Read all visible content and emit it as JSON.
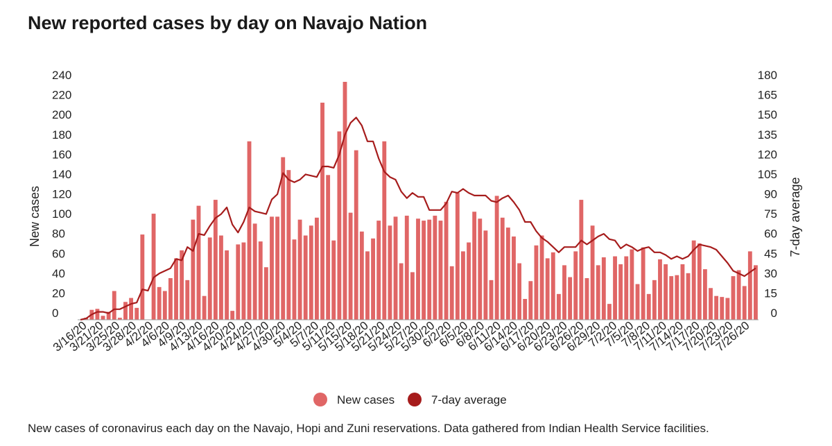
{
  "title": "New reported cases by day on Navajo Nation",
  "caption": "New cases of coronavirus each day on the Navajo, Hopi and Zuni reservations. Data gathered from Indian Health Service facilities.",
  "colors": {
    "bars": "#e06666",
    "line": "#a61c1c",
    "text": "#222222"
  },
  "chart_data": {
    "type": "bar",
    "title": "New reported cases by day on Navajo Nation",
    "ylabel": "New cases",
    "y2label": "7-day average",
    "ylim": [
      0,
      240
    ],
    "y2lim": [
      0,
      180
    ],
    "yticks": [
      0,
      20,
      40,
      60,
      80,
      100,
      120,
      140,
      160,
      180,
      200,
      220,
      240
    ],
    "y2ticks": [
      0,
      15,
      30,
      45,
      60,
      75,
      90,
      105,
      120,
      135,
      150,
      165,
      180
    ],
    "x_tick_labels": [
      "3/16/20",
      "3/21/20",
      "3/25/20",
      "3/28/20",
      "4/2/20",
      "4/6/20",
      "4/9/20",
      "4/13/20",
      "4/16/20",
      "4/20/20",
      "4/24/20",
      "4/27/20",
      "4/30/20",
      "5/4/20",
      "5/7/20",
      "5/11/20",
      "5/15/20",
      "5/18/20",
      "5/21/20",
      "5/24/20",
      "5/27/20",
      "5/30/20",
      "6/2/20",
      "6/5/20",
      "6/8/20",
      "6/11/20",
      "6/14/20",
      "6/17/20",
      "6/20/20",
      "6/23/20",
      "6/26/20",
      "6/29/20",
      "7/2/20",
      "7/5/20",
      "7/8/20",
      "7/11/20",
      "7/14/20",
      "7/17/20",
      "7/20/20",
      "7/23/20",
      "7/26/20"
    ],
    "legend": {
      "placement": "bottom-center",
      "entries": [
        "New cases",
        "7-day average"
      ]
    },
    "grid": false,
    "series": [
      {
        "name": "New cases",
        "type": "bar",
        "axis": "left",
        "values": [
          0,
          2,
          10,
          11,
          4,
          8,
          29,
          2,
          18,
          22,
          12,
          86,
          0,
          107,
          33,
          29,
          42,
          62,
          70,
          40,
          101,
          115,
          24,
          83,
          121,
          85,
          70,
          9,
          76,
          78,
          180,
          97,
          79,
          53,
          104,
          104,
          164,
          151,
          81,
          101,
          85,
          95,
          103,
          219,
          146,
          80,
          190,
          240,
          108,
          171,
          89,
          69,
          82,
          100,
          180,
          95,
          104,
          57,
          105,
          48,
          102,
          100,
          101,
          105,
          100,
          119,
          54,
          128,
          69,
          78,
          109,
          102,
          90,
          40,
          125,
          103,
          93,
          84,
          57,
          21,
          39,
          75,
          85,
          62,
          68,
          26,
          55,
          43,
          69,
          121,
          42,
          95,
          55,
          63,
          16,
          64,
          56,
          64,
          71,
          36,
          73,
          26,
          40,
          61,
          56,
          44,
          45,
          56,
          47,
          80,
          77,
          51,
          32,
          24,
          23,
          22,
          44,
          50,
          34,
          69,
          55
        ]
      },
      {
        "name": "7-day average",
        "type": "line",
        "axis": "right",
        "values": [
          0,
          1,
          4,
          6,
          6,
          5,
          8,
          8,
          10,
          12,
          13,
          23,
          22,
          32,
          35,
          37,
          39,
          46,
          45,
          55,
          52,
          65,
          64,
          71,
          77,
          80,
          85,
          72,
          66,
          74,
          85,
          82,
          81,
          80,
          91,
          95,
          111,
          106,
          104,
          106,
          110,
          109,
          108,
          116,
          116,
          115,
          125,
          140,
          149,
          153,
          147,
          135,
          135,
          122,
          112,
          108,
          106,
          97,
          92,
          96,
          93,
          93,
          83,
          83,
          83,
          88,
          97,
          96,
          99,
          96,
          94,
          94,
          94,
          90,
          89,
          92,
          94,
          89,
          83,
          74,
          74,
          67,
          62,
          59,
          55,
          51,
          55,
          55,
          55,
          60,
          57,
          60,
          63,
          65,
          61,
          60,
          54,
          57,
          55,
          52,
          54,
          55,
          51,
          51,
          49,
          46,
          48,
          46,
          48,
          53,
          57,
          56,
          55,
          53,
          48,
          43,
          37,
          35,
          33,
          36,
          39
        ]
      }
    ]
  }
}
